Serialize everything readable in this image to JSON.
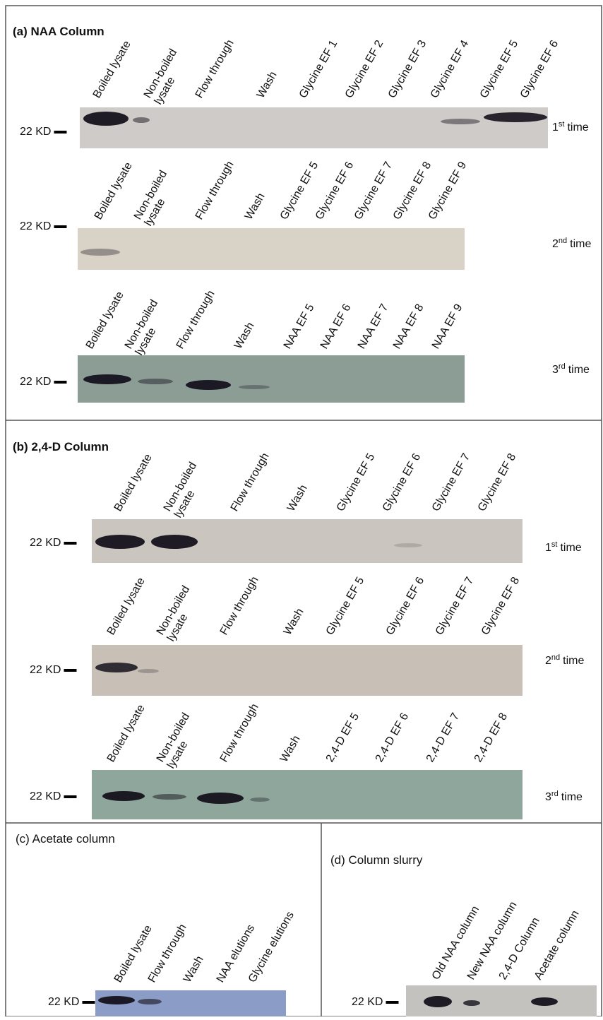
{
  "panels": [
    {
      "title": "(a) NAA Column",
      "blots": [
        {
          "lanes": [
            [
              "Boiled lysate"
            ],
            [
              "Non-boiled",
              "lysate"
            ],
            [
              "Flow through"
            ],
            [
              "Wash"
            ],
            [
              "Glycine EF 1"
            ],
            [
              "Glycine EF 2"
            ],
            [
              "Glycine EF 3"
            ],
            [
              "Glycine EF 4"
            ],
            [
              "Glycine EF 5"
            ],
            [
              "Glycine EF 6"
            ]
          ],
          "marker": "22 KD",
          "time": {
            "ordinal": "1",
            "suffix": "st",
            "word": "time"
          }
        },
        {
          "lanes": [
            [
              "Boiled lysate"
            ],
            [
              "Non-boiled",
              "lysate"
            ],
            [
              "Flow through"
            ],
            [
              "Wash"
            ],
            [
              "Glycine EF 5"
            ],
            [
              "Glycine EF 6"
            ],
            [
              "Glycine EF 7"
            ],
            [
              "Glycine EF 8"
            ],
            [
              "Glycine EF 9"
            ]
          ],
          "marker": "22 KD",
          "time": {
            "ordinal": "2",
            "suffix": "nd",
            "word": "time"
          }
        },
        {
          "lanes": [
            [
              "Boiled lysate"
            ],
            [
              "Non-boiled",
              "lysate"
            ],
            [
              "Flow through"
            ],
            [
              "Wash"
            ],
            [
              "NAA EF 5"
            ],
            [
              "NAA EF 6"
            ],
            [
              "NAA EF 7"
            ],
            [
              "NAA EF 8"
            ],
            [
              "NAA EF 9"
            ]
          ],
          "marker": "22 KD",
          "time": {
            "ordinal": "3",
            "suffix": "rd",
            "word": "time"
          }
        }
      ]
    },
    {
      "title": "(b) 2,4-D Column",
      "blots": [
        {
          "lanes": [
            [
              "Boiled lysate"
            ],
            [
              "Non-boiled",
              "lysate"
            ],
            [
              "Flow through"
            ],
            [
              "Wash"
            ],
            [
              "Glycine EF 5"
            ],
            [
              "Glycine EF 6"
            ],
            [
              "Glycine EF 7"
            ],
            [
              "Glycine EF 8"
            ]
          ],
          "marker": "22 KD",
          "time": {
            "ordinal": "1",
            "suffix": "st",
            "word": "time"
          }
        },
        {
          "lanes": [
            [
              "Boiled lysate"
            ],
            [
              "Non-boiled",
              "lysate"
            ],
            [
              "Flow through"
            ],
            [
              "Wash"
            ],
            [
              "Glycine EF 5"
            ],
            [
              "Glycine EF 6"
            ],
            [
              "Glycine EF 7"
            ],
            [
              "Glycine EF 8"
            ]
          ],
          "marker": "22 KD",
          "time": {
            "ordinal": "2",
            "suffix": "nd",
            "word": "time"
          }
        },
        {
          "lanes": [
            [
              "Boiled lysate"
            ],
            [
              "Non-boiled",
              "lysate"
            ],
            [
              "Flow through"
            ],
            [
              "Wash"
            ],
            [
              "2,4-D EF 5"
            ],
            [
              "2,4-D EF 6"
            ],
            [
              "2,4-D EF 7"
            ],
            [
              "2,4-D EF 8"
            ]
          ],
          "marker": "22 KD",
          "time": {
            "ordinal": "3",
            "suffix": "rd",
            "word": "time"
          }
        }
      ]
    },
    {
      "title": "(c) Acetate column",
      "blots": [
        {
          "lanes": [
            [
              "Boiled lysate"
            ],
            [
              "Flow through"
            ],
            [
              "Wash"
            ],
            [
              "NAA elutions"
            ],
            [
              "Glycine elutions"
            ]
          ],
          "marker": "22 KD"
        }
      ]
    },
    {
      "title": "(d) Column slurry",
      "blots": [
        {
          "lanes": [
            [
              "Old NAA column"
            ],
            [
              "New NAA column"
            ],
            [
              "2,4-D Column"
            ],
            [
              "Acetate column"
            ]
          ],
          "marker": "22 KD"
        }
      ]
    }
  ]
}
